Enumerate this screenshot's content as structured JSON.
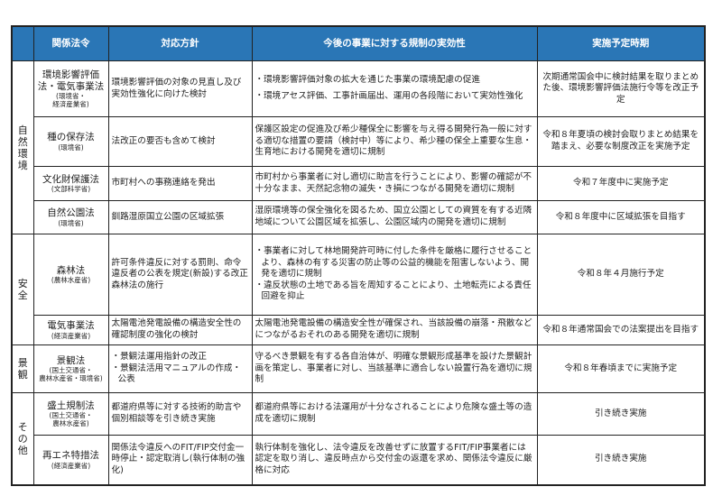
{
  "headers": [
    "",
    "関係法令",
    "対応方針",
    "今後の事業に対する規制の実効性",
    "実施予定時期"
  ],
  "colors": {
    "header_bg": "#2a76b6",
    "header_text": "#ffffff",
    "border": "#222222"
  },
  "groups": [
    {
      "category": "自然環境",
      "rows": [
        {
          "law": "環境影響評価法・電気事業法",
          "ministry": "(環境省・\n経済産業省)",
          "policy": [
            "環境影響評価の対象の見直し及び実効性強化に向けた検討"
          ],
          "policy_bullets": false,
          "effect": [
            "・環境影響評価対象の拡大を通じた事業の環境配慮の促進",
            "・環境アセス評価、工事計画届出、運用の各段階において実効性強化"
          ],
          "effect_bullets": true,
          "schedule": "次期通常国会中に検討結果を取りまとめた後、環境影響評価法施行令等を改正予定"
        },
        {
          "law": "種の保存法",
          "ministry": "(環境省)",
          "policy": [
            "法改正の要否も含めて検討"
          ],
          "policy_bullets": false,
          "effect": [
            "保護区設定の促進及び希少種保全に影響を与え得る開発行為一般に対する適切な措置の要請（検討中）等により、希少種の保全上重要な生息・生育地における開発を適切に規制"
          ],
          "effect_bullets": false,
          "schedule": "令和８年夏頃の検討会取りまとめ結果を踏まえ、必要な制度改正を実施予定"
        },
        {
          "law": "文化財保護法",
          "ministry": "(文部科学省)",
          "policy": [
            "市町村への事務連絡を発出"
          ],
          "policy_bullets": false,
          "effect": [
            "市町村から事業者に対し適切に助言を行うことにより、影響の確認が不十分なまま、天然記念物の滅失・き損につながる開発を適切に規制"
          ],
          "effect_bullets": false,
          "schedule": "令和７年度中に実施予定"
        },
        {
          "law": "自然公園法",
          "ministry": "(環境省)",
          "policy": [
            "釧路湿原国立公園の区域拡張"
          ],
          "policy_bullets": false,
          "effect": [
            "湿原環境等の保全強化を図るため、国立公園としての資質を有する近隣地域について公園区域を拡張し、公園区域内の開発を適切に規制"
          ],
          "effect_bullets": false,
          "schedule": "令和８年度中に区域拡張を目指す"
        }
      ]
    },
    {
      "category": "安全",
      "rows": [
        {
          "law": "森林法",
          "ministry": "(農林水産省)",
          "policy": [
            "許可条件違反に対する罰則、命令違反者の公表を規定(新設)する改正森林法の施行"
          ],
          "policy_bullets": false,
          "effect": [
            "・事業者に対して林地開発許可時に付した条件を厳格に履行させることより、森林の有する災害の防止等の公益的機能を阻害しないよう、開発を適切に規制",
            "・違反状態の土地である旨を周知することにより、土地転売による責任回避を抑止"
          ],
          "effect_bullets": true,
          "schedule": "令和８年４月施行予定"
        },
        {
          "law": "電気事業法",
          "ministry": "(経済産業省)",
          "policy": [
            "太陽電池発電設備の構造安全性の確認制度の強化の検討"
          ],
          "policy_bullets": false,
          "effect": [
            "太陽電池発電設備の構造安全性が確保され、当該設備の崩落・飛散などにつながるおそれのある開発を適切に規制"
          ],
          "effect_bullets": false,
          "schedule": "令和８年通常国会での法案提出を目指す"
        }
      ]
    },
    {
      "category": "景観",
      "rows": [
        {
          "law": "景観法",
          "ministry": "(国土交通省・\n農林水産省・環境省)",
          "policy": [
            "・景観法運用指針の改正",
            "・景観法活用マニュアルの作成・公表"
          ],
          "policy_bullets": true,
          "effect": [
            "守るべき景観を有する各自治体が、明確な景観形成基準を設けた景観計画を策定し、事業者に対し、当該基準に適合しない設置行為を適切に規制"
          ],
          "effect_bullets": false,
          "schedule": "令和８年春頃までに実施予定"
        }
      ]
    },
    {
      "category": "その他",
      "rows": [
        {
          "law": "盛土規制法",
          "ministry": "(国土交通省・\n農林水産省)",
          "policy": [
            "都道府県等に対する技術的助言や個別相談等を引き続き実施"
          ],
          "policy_bullets": false,
          "effect": [
            "都道府県等における法運用が十分なされることにより危険な盛土等の造成を適切に規制"
          ],
          "effect_bullets": false,
          "schedule": "引き続き実施"
        },
        {
          "law": "再エネ特措法",
          "ministry": "(経済産業省)",
          "policy": [
            "関係法令違反へのFIT/FIP交付金一時停止・認定取消し(執行体制の強化)"
          ],
          "policy_bullets": false,
          "effect": [
            "執行体制を強化し、法令違反を改善せずに放置するFIT/FIP事業者には認定を取り消し、違反時点から交付金の返還を求め、関係法令違反に厳格に対応"
          ],
          "effect_bullets": false,
          "schedule": "引き続き実施"
        }
      ]
    }
  ]
}
